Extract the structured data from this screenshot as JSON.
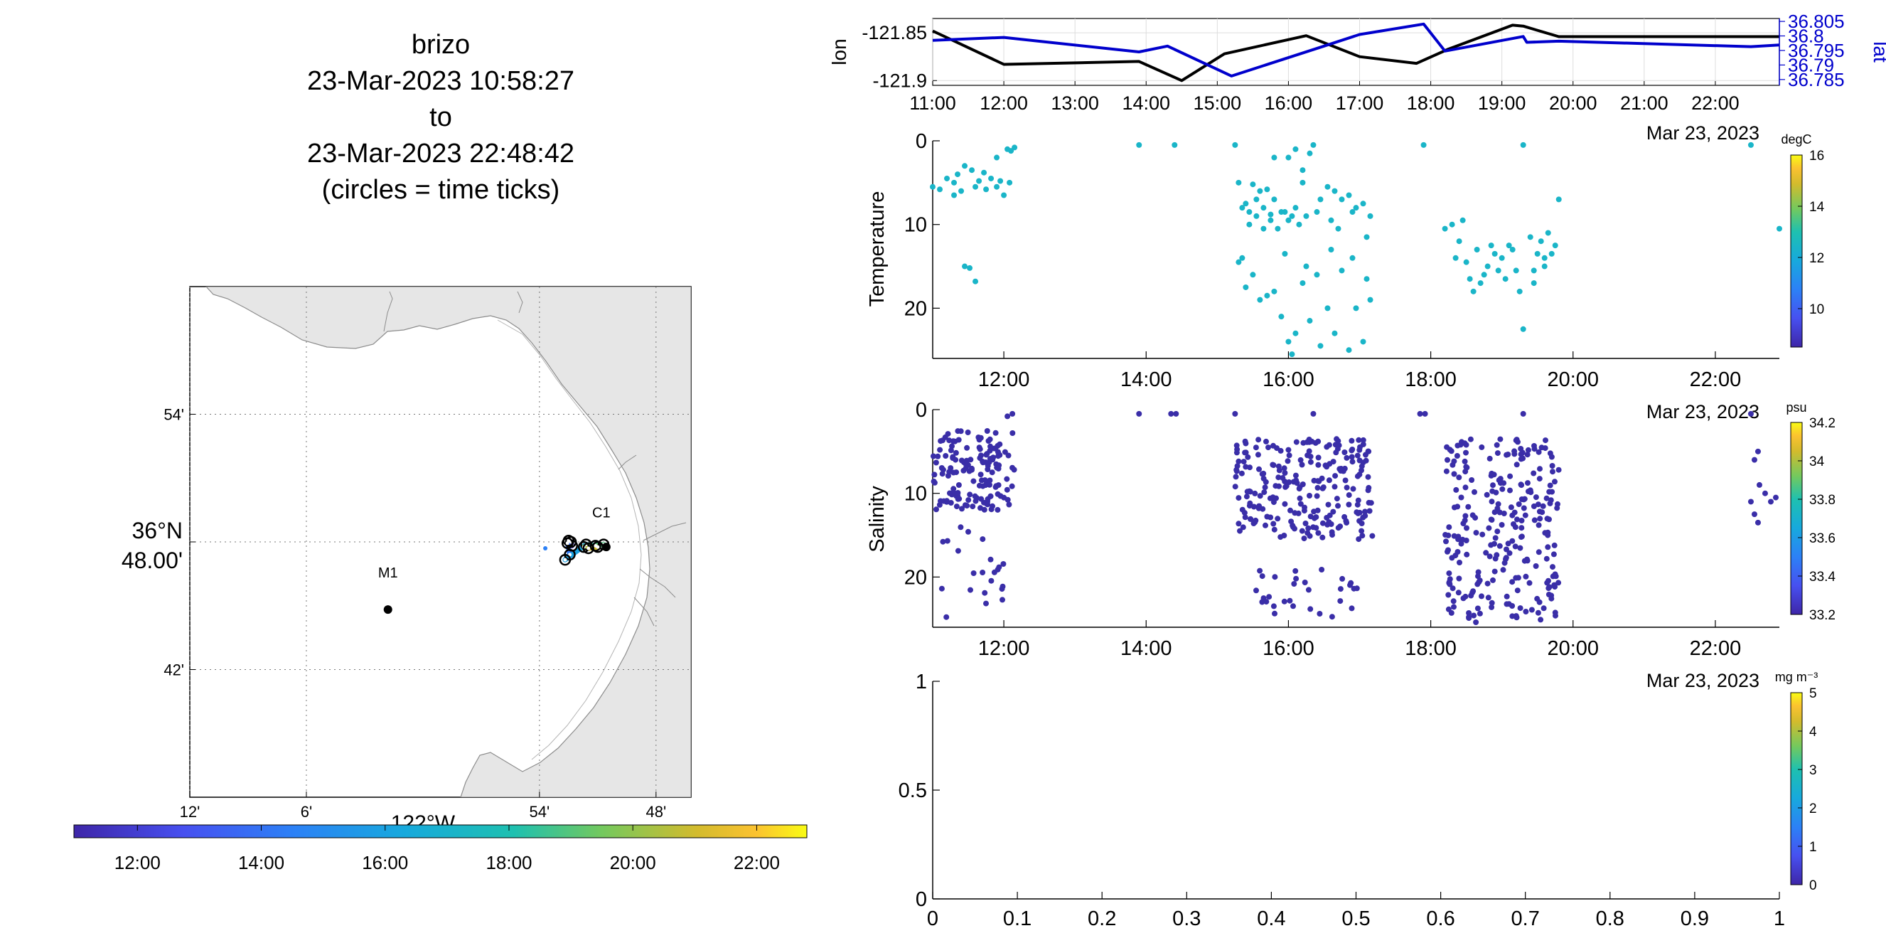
{
  "title": {
    "platform": "brizo",
    "start": "23-Mar-2023 10:58:27",
    "to": "to",
    "end": "23-Mar-2023 22:48:42",
    "note": "(circles = time ticks)"
  },
  "chart_data": [
    {
      "name": "track-map",
      "type": "scatter",
      "xlabel": "122°W",
      "lon_tick_labels": [
        "12'",
        "6'",
        "54'",
        "48'"
      ],
      "lon_ticks_deg": [
        -122.2,
        -122.1,
        -121.9,
        -121.8
      ],
      "lat_tick_labels": [
        "54'",
        "36°N 48.00'",
        "42'"
      ],
      "lat_ticks_deg": [
        36.9,
        36.8,
        36.7
      ],
      "xlim": [
        -122.2,
        -121.77
      ],
      "ylim": [
        36.6,
        37.0
      ],
      "stations": [
        {
          "label": "M1",
          "lon": -122.03,
          "lat": 36.747
        },
        {
          "label": "C1",
          "lon": -121.85,
          "lat": 36.797
        }
      ],
      "track": [
        {
          "t": "11:00",
          "lon": -121.872,
          "lat": 36.797
        },
        {
          "t": "12:00",
          "lon": -121.873,
          "lat": 36.8
        },
        {
          "t": "13:00",
          "lon": -121.875,
          "lat": 36.801
        },
        {
          "t": "14:00",
          "lon": -121.876,
          "lat": 36.799
        },
        {
          "t": "15:00",
          "lon": -121.874,
          "lat": 36.79
        },
        {
          "t": "16:00",
          "lon": -121.878,
          "lat": 36.786
        },
        {
          "t": "17:00",
          "lon": -121.86,
          "lat": 36.798
        },
        {
          "t": "18:00",
          "lon": -121.852,
          "lat": 36.797
        },
        {
          "t": "19:00",
          "lon": -121.845,
          "lat": 36.798
        },
        {
          "t": "20:00",
          "lon": -121.862,
          "lat": 36.796
        },
        {
          "t": "21:00",
          "lon": -121.858,
          "lat": 36.795
        },
        {
          "t": "22:00",
          "lon": -121.85,
          "lat": 36.796
        }
      ],
      "time_colorbar": {
        "ticks": [
          "12:00",
          "14:00",
          "16:00",
          "18:00",
          "20:00",
          "22:00"
        ],
        "range_h": [
          10.975,
          22.81
        ]
      }
    },
    {
      "name": "position",
      "type": "line",
      "ylabel": "lon",
      "y2label": "lat",
      "x_ticks": [
        "11:00",
        "12:00",
        "13:00",
        "14:00",
        "15:00",
        "16:00",
        "17:00",
        "18:00",
        "19:00",
        "20:00",
        "21:00",
        "22:00"
      ],
      "x_date_label": "Mar 23, 2023",
      "xlim_h": [
        11.0,
        22.9
      ],
      "ylim": [
        -121.905,
        -121.835
      ],
      "y_ticks": [
        -121.85,
        -121.9
      ],
      "y_tick_labels": [
        "-121.85",
        "-121.9"
      ],
      "y2lim": [
        36.783,
        36.806
      ],
      "y2_ticks": [
        36.805,
        36.8,
        36.795,
        36.79,
        36.785
      ],
      "y2_tick_labels": [
        "36.805",
        "36.8",
        "36.795",
        "36.79",
        "36.785"
      ],
      "series": [
        {
          "name": "lon",
          "color": "#000000",
          "x_h": [
            11.0,
            12.0,
            13.9,
            14.5,
            15.1,
            16.25,
            17.0,
            17.8,
            18.25,
            19.15,
            19.3,
            19.8,
            22.9
          ],
          "y": [
            -121.848,
            -121.883,
            -121.88,
            -121.9,
            -121.872,
            -121.853,
            -121.875,
            -121.882,
            -121.867,
            -121.842,
            -121.843,
            -121.854,
            -121.854
          ]
        },
        {
          "name": "lat",
          "color": "#0000cc",
          "x_h": [
            11.0,
            12.0,
            13.9,
            14.3,
            15.2,
            16.5,
            17.0,
            17.9,
            18.2,
            19.3,
            19.35,
            19.8,
            22.5,
            22.9
          ],
          "y": [
            36.7985,
            36.7995,
            36.7945,
            36.7965,
            36.7862,
            36.7965,
            36.8005,
            36.8041,
            36.7948,
            36.7998,
            36.7978,
            36.7982,
            36.7963,
            36.7969
          ]
        }
      ]
    },
    {
      "name": "temperature",
      "type": "scatter",
      "ylabel": "Temperature",
      "y_ticks": [
        0,
        10,
        20
      ],
      "ylim": [
        0,
        26
      ],
      "x_ticks": [
        "12:00",
        "14:00",
        "16:00",
        "18:00",
        "20:00",
        "22:00"
      ],
      "xlim_h": [
        11.0,
        22.9
      ],
      "point_color": "#1ab5c8",
      "colorbar": {
        "unit": "degC",
        "ticks": [
          10,
          12,
          14,
          16
        ],
        "range": [
          8.5,
          16
        ]
      },
      "points": [
        [
          11.0,
          5.5
        ],
        [
          11.1,
          5.8
        ],
        [
          11.2,
          4.5
        ],
        [
          11.3,
          6.5
        ],
        [
          11.35,
          4.0
        ],
        [
          11.45,
          3.0
        ],
        [
          11.55,
          3.5
        ],
        [
          11.65,
          4.8
        ],
        [
          11.72,
          3.8
        ],
        [
          11.82,
          4.5
        ],
        [
          11.9,
          5.5
        ],
        [
          12.0,
          6.5
        ],
        [
          12.08,
          5.0
        ],
        [
          11.3,
          5.0
        ],
        [
          11.4,
          6.0
        ],
        [
          11.6,
          5.5
        ],
        [
          11.75,
          5.8
        ],
        [
          11.95,
          4.8
        ],
        [
          11.45,
          15.0
        ],
        [
          11.52,
          15.2
        ],
        [
          11.6,
          16.8
        ],
        [
          11.9,
          2.0
        ],
        [
          12.05,
          1.0
        ],
        [
          12.15,
          0.8
        ],
        [
          12.1,
          1.2
        ],
        [
          13.9,
          0.5
        ],
        [
          14.4,
          0.5
        ],
        [
          17.9,
          0.5
        ],
        [
          19.3,
          0.5
        ],
        [
          22.5,
          0.5
        ],
        [
          22.9,
          10.5
        ],
        [
          15.25,
          0.5
        ],
        [
          16.35,
          0.5
        ],
        [
          15.3,
          5.0
        ],
        [
          15.4,
          7.5
        ],
        [
          15.5,
          5.2
        ],
        [
          15.6,
          6.0
        ],
        [
          15.7,
          5.8
        ],
        [
          15.8,
          7.0
        ],
        [
          15.9,
          8.5
        ],
        [
          16.0,
          9.5
        ],
        [
          16.1,
          8.0
        ],
        [
          16.2,
          5.0
        ],
        [
          16.3,
          1.5
        ],
        [
          16.45,
          7.0
        ],
        [
          16.55,
          5.5
        ],
        [
          16.65,
          6.0
        ],
        [
          16.75,
          7.0
        ],
        [
          16.85,
          6.5
        ],
        [
          16.95,
          8.0
        ],
        [
          17.05,
          7.5
        ],
        [
          17.15,
          9.0
        ],
        [
          15.45,
          10.0
        ],
        [
          15.55,
          9.0
        ],
        [
          15.65,
          8.0
        ],
        [
          15.75,
          9.5
        ],
        [
          15.85,
          10.5
        ],
        [
          15.95,
          8.5
        ],
        [
          16.05,
          9.0
        ],
        [
          16.15,
          10.0
        ],
        [
          16.25,
          9.0
        ],
        [
          16.4,
          8.5
        ],
        [
          16.6,
          9.5
        ],
        [
          16.7,
          10.5
        ],
        [
          16.9,
          8.5
        ],
        [
          17.1,
          11.5
        ],
        [
          15.35,
          8.0
        ],
        [
          15.45,
          8.5
        ],
        [
          15.55,
          7.0
        ],
        [
          15.65,
          10.5
        ],
        [
          15.75,
          8.8
        ],
        [
          16.0,
          2.0
        ],
        [
          16.1,
          1.0
        ],
        [
          16.2,
          3.5
        ],
        [
          15.8,
          2.0
        ],
        [
          15.35,
          14.0
        ],
        [
          15.4,
          17.5
        ],
        [
          15.5,
          16.0
        ],
        [
          15.6,
          19.0
        ],
        [
          15.7,
          18.5
        ],
        [
          15.8,
          18.0
        ],
        [
          15.9,
          21.0
        ],
        [
          16.0,
          24.0
        ],
        [
          16.05,
          25.5
        ],
        [
          16.1,
          23.0
        ],
        [
          16.2,
          17.0
        ],
        [
          16.3,
          21.5
        ],
        [
          16.4,
          16.0
        ],
        [
          16.45,
          24.5
        ],
        [
          16.55,
          20.0
        ],
        [
          16.65,
          23.0
        ],
        [
          16.75,
          15.5
        ],
        [
          16.85,
          25.0
        ],
        [
          16.95,
          20.0
        ],
        [
          17.05,
          24.0
        ],
        [
          17.1,
          16.5
        ],
        [
          17.15,
          19.0
        ],
        [
          15.3,
          14.5
        ],
        [
          15.95,
          13.5
        ],
        [
          16.25,
          15.0
        ],
        [
          16.6,
          13.0
        ],
        [
          16.9,
          14.0
        ],
        [
          18.2,
          10.5
        ],
        [
          18.3,
          10.0
        ],
        [
          18.4,
          12.0
        ],
        [
          18.5,
          14.5
        ],
        [
          18.55,
          16.5
        ],
        [
          18.6,
          18.0
        ],
        [
          18.7,
          17.0
        ],
        [
          18.8,
          15.0
        ],
        [
          18.9,
          13.5
        ],
        [
          19.0,
          14.0
        ],
        [
          19.1,
          12.5
        ],
        [
          19.2,
          15.5
        ],
        [
          19.25,
          18.0
        ],
        [
          18.35,
          14.0
        ],
        [
          18.45,
          9.5
        ],
        [
          18.65,
          13.0
        ],
        [
          18.75,
          16.0
        ],
        [
          18.85,
          12.5
        ],
        [
          18.95,
          15.5
        ],
        [
          19.05,
          16.5
        ],
        [
          19.15,
          13.0
        ],
        [
          19.3,
          22.5
        ],
        [
          19.4,
          11.5
        ],
        [
          19.45,
          15.5
        ],
        [
          19.5,
          13.5
        ],
        [
          19.55,
          12.0
        ],
        [
          19.6,
          14.0
        ],
        [
          19.65,
          11.0
        ],
        [
          19.7,
          13.5
        ],
        [
          19.75,
          12.5
        ],
        [
          19.8,
          7.0
        ],
        [
          19.45,
          17.0
        ],
        [
          19.6,
          15.0
        ]
      ]
    },
    {
      "name": "salinity",
      "type": "scatter",
      "ylabel": "Salinity",
      "y_ticks": [
        0,
        10,
        20
      ],
      "ylim": [
        0,
        26
      ],
      "x_ticks": [
        "12:00",
        "14:00",
        "16:00",
        "18:00",
        "20:00",
        "22:00"
      ],
      "xlim_h": [
        11.0,
        22.9
      ],
      "point_color": "#3a2ea8",
      "colorbar": {
        "unit": "psu",
        "ticks": [
          33.2,
          33.4,
          33.6,
          33.8,
          34,
          34.2
        ],
        "range": [
          33.2,
          34.2
        ]
      },
      "clusters": [
        {
          "t_start": 11.0,
          "t_end": 12.15,
          "d_min": 2.5,
          "d_max": 12,
          "n": 150
        },
        {
          "t_start": 11.1,
          "t_end": 12.0,
          "d_min": 14,
          "d_max": 25,
          "n": 22
        },
        {
          "t_start": 15.25,
          "t_end": 17.2,
          "d_min": 3.5,
          "d_max": 15.5,
          "n": 230
        },
        {
          "t_start": 15.3,
          "t_end": 17.0,
          "d_min": 19,
          "d_max": 25,
          "n": 30
        },
        {
          "t_start": 18.2,
          "t_end": 19.8,
          "d_min": 3.5,
          "d_max": 25.5,
          "n": 260
        }
      ],
      "points": [
        [
          12.05,
          0.8
        ],
        [
          12.12,
          0.5
        ],
        [
          13.9,
          0.5
        ],
        [
          14.35,
          0.5
        ],
        [
          14.42,
          0.5
        ],
        [
          15.25,
          0.5
        ],
        [
          16.35,
          0.5
        ],
        [
          17.85,
          0.5
        ],
        [
          17.92,
          0.5
        ],
        [
          19.3,
          0.5
        ],
        [
          22.5,
          0.5
        ],
        [
          22.6,
          5.0
        ],
        [
          22.55,
          6.0
        ],
        [
          22.62,
          9.0
        ],
        [
          22.7,
          10.0
        ],
        [
          22.78,
          11.0
        ],
        [
          22.85,
          10.5
        ],
        [
          22.5,
          11.0
        ],
        [
          22.55,
          12.5
        ],
        [
          22.6,
          13.5
        ]
      ]
    },
    {
      "name": "chlorophyll",
      "type": "scatter",
      "y_ticks": [
        0,
        0.5,
        1
      ],
      "x_ticks": [
        0,
        0.1,
        0.2,
        0.3,
        0.4,
        0.5,
        0.6,
        0.7,
        0.8,
        0.9,
        1
      ],
      "xlim": [
        0,
        1
      ],
      "ylim": [
        0,
        1
      ],
      "colorbar": {
        "unit": "mg m⁻³",
        "ticks": [
          0,
          1,
          2,
          3,
          4,
          5
        ],
        "range": [
          0,
          5
        ]
      },
      "points": []
    }
  ],
  "date_label": "Mar 23, 2023"
}
